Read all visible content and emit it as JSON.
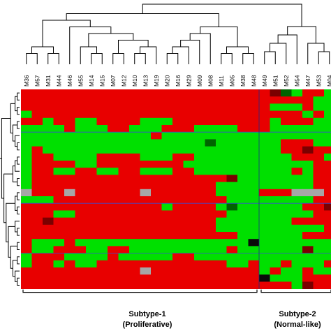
{
  "chart_data": {
    "type": "heatmap",
    "title": "",
    "columns": [
      "M36",
      "M57",
      "M31",
      "M44",
      "M46",
      "M55",
      "M14",
      "M15",
      "M07",
      "M12",
      "M10",
      "M13",
      "M19",
      "M20",
      "M16",
      "M29",
      "M09",
      "M08",
      "M11",
      "M05",
      "M38",
      "M48",
      "M49",
      "M51",
      "M52",
      "M54",
      "M47",
      "M53",
      "M04"
    ],
    "groups": [
      {
        "label_line1": "Subtype-1",
        "label_line2": "(Proliferative)",
        "from_col": 0,
        "to_col": 21
      },
      {
        "label_line1": "Subtype-2",
        "label_line2": "(Normal-like)",
        "from_col": 22,
        "to_col": 28
      }
    ],
    "column_dendrogram": true,
    "row_dendrogram": true,
    "value_legend": {
      "R": "high",
      "G": "low",
      "Y": "missing",
      "D": "dark red",
      "K": "dark green",
      "B": "black"
    },
    "colors": {
      "R": "#e80000",
      "G": "#00e000",
      "Y": "#a6a6a6",
      "D": "#7a0000",
      "K": "#006400",
      "B": "#0a0a0a"
    },
    "cluster_lines_color": "#3a4bd6",
    "rows": [
      "RRRRRRRRRRRRRRRRRRRRRRRDKGRRG",
      "RRRRRRRRRRRRRRRRRRRRRRRRRRRGG",
      "RRRRRRRRRRRRRRRRRRRRRRRGGGRGG",
      "GRRRRRRRRRRRRRRRRRRRRRRRRRGRG",
      "RRGRRGGRRRRGGGRRRRRRRRRGRRRGG",
      "GGGGRGGGRRGGGRRRGGGGRRRGGGGGG",
      "GGGGGGGGGGGGRGGGGGGGGGGGGGGGG",
      "GGGGGGGGGGGGGGGGGKGGGGGGRRRGG",
      "GRGGGGGGGGGGGGGGGGGGGGGGRRDRR",
      "GRRGGGGRRRRGGGRRGGGGGGGGGRRRG",
      "GRRRRGGRRRRRRRRGGGGGGGGGGGGRR",
      "GRRGGRRGGRRGGGRRGGGGGGGGGRGRR",
      "GRRRRRRRRRRRRRRRRRRDGGGGGGGRR",
      "GRRRRRRRRRRRRRRRRRGGGGGGGGGRR",
      "YRRRYRRRRRRYRRRRRRGGGGRRRYYYR",
      "GGGRRRRRRRRRRRRRRRRGGGGGGGGRR",
      "RRRRRRRRRRRRRGRRRRGKGGGGGGRRD",
      "RRRGGRRRRRRRRRRRRRRGGGGGGGGRR",
      "RRDRRRRRRRRRRRRRRRGGGGGGGRRRR",
      "RRRRRRRRRRRRRRRRRRGGGGGGGGGGR",
      "RRRRRRRRRRRRRRRRRRRRGGGGGGRRR",
      "RGGGRGGGGGGGGGGGGGGGGBGGGGGGG",
      "RGGRRRGGRRGGGGGGGGGRGGGGGGDGG",
      "GRRRGGGGRGGGGGRRGGGGGGGGGGGGG",
      "GRRGRGGRRRRRRRRRRRRGGRGGRGGGR",
      "RRRRRRRRRRRYRRRRRRRRRRGRGGRGG",
      "RRRRRRRRRRRRRRRRRRRRRRBGGGRRR",
      "RRRRRRRRRRRRRRRRRRRRRRRRRGDRR"
    ]
  }
}
